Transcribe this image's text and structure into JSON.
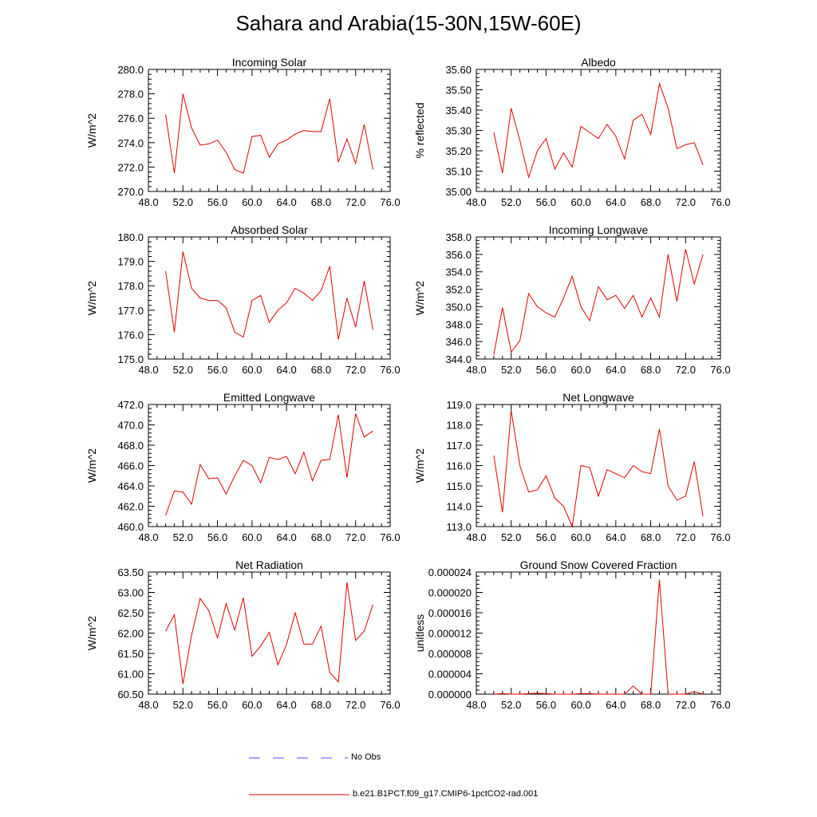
{
  "figure_title": "Sahara and Arabia(15-30N,15W-60E)",
  "legend": {
    "items": [
      {
        "label": "No Obs",
        "color": "#4b4bff",
        "style": "dashed"
      },
      {
        "label": "b.e21.B1PCT.f09_g17.CMIP6-1pctCO2-rad.001",
        "color": "#e00000",
        "style": "solid"
      }
    ]
  },
  "chart_data": [
    {
      "type": "line",
      "title": "Incoming Solar",
      "ylabel": "W/m^2",
      "xlim": [
        48,
        76
      ],
      "ylim": [
        270,
        280
      ],
      "xticks": [
        "48.0",
        "52.0",
        "56.0",
        "60.0",
        "64.0",
        "68.0",
        "72.0",
        "76.0"
      ],
      "yticks": [
        "270.0",
        "272.0",
        "274.0",
        "276.0",
        "278.0",
        "280.0"
      ],
      "series": [
        {
          "color": "#e00000",
          "x": [
            50,
            51,
            52,
            53,
            54,
            55,
            56,
            57,
            58,
            59,
            60,
            61,
            62,
            63,
            64,
            65,
            66,
            67,
            68,
            69,
            70,
            71,
            72,
            73,
            74
          ],
          "y": [
            276.3,
            271.5,
            278.0,
            275.2,
            273.8,
            273.9,
            274.2,
            273.2,
            271.8,
            271.5,
            274.5,
            274.6,
            272.8,
            273.9,
            274.2,
            274.7,
            275.0,
            274.9,
            274.9,
            277.6,
            272.4,
            274.3,
            272.3,
            275.5,
            271.8
          ]
        }
      ]
    },
    {
      "type": "line",
      "title": "Albedo",
      "ylabel": "% reflected",
      "xlim": [
        48,
        76
      ],
      "ylim": [
        35.0,
        35.6
      ],
      "xticks": [
        "48.0",
        "52.0",
        "56.0",
        "60.0",
        "64.0",
        "68.0",
        "72.0",
        "76.0"
      ],
      "yticks": [
        "35.00",
        "35.10",
        "35.20",
        "35.30",
        "35.40",
        "35.50",
        "35.60"
      ],
      "series": [
        {
          "color": "#e00000",
          "x": [
            50,
            51,
            52,
            53,
            54,
            55,
            56,
            57,
            58,
            59,
            60,
            61,
            62,
            63,
            64,
            65,
            66,
            67,
            68,
            69,
            70,
            71,
            72,
            73,
            74
          ],
          "y": [
            35.29,
            35.09,
            35.41,
            35.25,
            35.07,
            35.2,
            35.26,
            35.11,
            35.19,
            35.12,
            35.32,
            35.29,
            35.26,
            35.33,
            35.27,
            35.16,
            35.35,
            35.38,
            35.28,
            35.53,
            35.41,
            35.21,
            35.23,
            35.24,
            35.13
          ]
        }
      ]
    },
    {
      "type": "line",
      "title": "Absorbed Solar",
      "ylabel": "W/m^2",
      "xlim": [
        48,
        76
      ],
      "ylim": [
        175,
        180
      ],
      "xticks": [
        "48.0",
        "52.0",
        "56.0",
        "60.0",
        "64.0",
        "68.0",
        "72.0",
        "76.0"
      ],
      "yticks": [
        "175.0",
        "176.0",
        "177.0",
        "178.0",
        "179.0",
        "180.0"
      ],
      "series": [
        {
          "color": "#e00000",
          "x": [
            50,
            51,
            52,
            53,
            54,
            55,
            56,
            57,
            58,
            59,
            60,
            61,
            62,
            63,
            64,
            65,
            66,
            67,
            68,
            69,
            70,
            71,
            72,
            73,
            74
          ],
          "y": [
            178.6,
            176.1,
            179.4,
            177.9,
            177.5,
            177.4,
            177.4,
            177.1,
            176.1,
            175.9,
            177.4,
            177.6,
            176.5,
            177.0,
            177.3,
            177.9,
            177.7,
            177.4,
            177.8,
            178.8,
            175.8,
            177.5,
            176.3,
            178.2,
            176.2
          ]
        }
      ]
    },
    {
      "type": "line",
      "title": "Incoming Longwave",
      "ylabel": "W/m^2",
      "xlim": [
        48,
        76
      ],
      "ylim": [
        344,
        358
      ],
      "xticks": [
        "48.0",
        "52.0",
        "56.0",
        "60.0",
        "64.0",
        "68.0",
        "72.0",
        "76.0"
      ],
      "yticks": [
        "344.0",
        "346.0",
        "348.0",
        "350.0",
        "352.0",
        "354.0",
        "356.0",
        "358.0"
      ],
      "series": [
        {
          "color": "#e00000",
          "x": [
            50,
            51,
            52,
            53,
            54,
            55,
            56,
            57,
            58,
            59,
            60,
            61,
            62,
            63,
            64,
            65,
            66,
            67,
            68,
            69,
            70,
            71,
            72,
            73,
            74
          ],
          "y": [
            344.5,
            349.9,
            344.8,
            346.1,
            351.5,
            350.0,
            349.3,
            348.8,
            351.0,
            353.5,
            350.0,
            348.4,
            352.3,
            350.8,
            351.3,
            349.8,
            351.3,
            348.8,
            351.0,
            348.8,
            356.0,
            350.6,
            356.6,
            352.6,
            356.0
          ]
        }
      ]
    },
    {
      "type": "line",
      "title": "Emitted Longwave",
      "ylabel": "W/m^2",
      "xlim": [
        48,
        76
      ],
      "ylim": [
        460,
        472
      ],
      "xticks": [
        "48.0",
        "52.0",
        "56.0",
        "60.0",
        "64.0",
        "68.0",
        "72.0",
        "76.0"
      ],
      "yticks": [
        "460.0",
        "462.0",
        "464.0",
        "466.0",
        "468.0",
        "470.0",
        "472.0"
      ],
      "series": [
        {
          "color": "#e00000",
          "x": [
            50,
            51,
            52,
            53,
            54,
            55,
            56,
            57,
            58,
            59,
            60,
            61,
            62,
            63,
            64,
            65,
            66,
            67,
            68,
            69,
            70,
            71,
            72,
            73,
            74
          ],
          "y": [
            461.1,
            463.5,
            463.4,
            462.2,
            466.1,
            464.7,
            464.8,
            463.2,
            465.0,
            466.5,
            466.0,
            464.3,
            466.8,
            466.6,
            466.9,
            465.2,
            467.3,
            464.5,
            466.5,
            466.6,
            471.0,
            464.8,
            471.1,
            468.8,
            469.4
          ]
        }
      ]
    },
    {
      "type": "line",
      "title": "Net Longwave",
      "ylabel": "W/m^2",
      "xlim": [
        48,
        76
      ],
      "ylim": [
        113,
        119
      ],
      "xticks": [
        "48.0",
        "52.0",
        "56.0",
        "60.0",
        "64.0",
        "68.0",
        "72.0",
        "76.0"
      ],
      "yticks": [
        "113.0",
        "114.0",
        "115.0",
        "116.0",
        "117.0",
        "118.0",
        "119.0"
      ],
      "series": [
        {
          "color": "#e00000",
          "x": [
            50,
            51,
            52,
            53,
            54,
            55,
            56,
            57,
            58,
            59,
            60,
            61,
            62,
            63,
            64,
            65,
            66,
            67,
            68,
            69,
            70,
            71,
            72,
            73,
            74
          ],
          "y": [
            116.5,
            113.7,
            118.7,
            116.0,
            114.7,
            114.8,
            115.5,
            114.4,
            114.0,
            113.0,
            116.0,
            115.9,
            114.5,
            115.8,
            115.6,
            115.4,
            116.0,
            115.7,
            115.6,
            117.8,
            115.0,
            114.3,
            114.5,
            116.2,
            113.5
          ]
        }
      ]
    },
    {
      "type": "line",
      "title": "Net Radiation",
      "ylabel": "W/m^2",
      "xlim": [
        48,
        76
      ],
      "ylim": [
        60.5,
        63.5
      ],
      "xticks": [
        "48.0",
        "52.0",
        "56.0",
        "60.0",
        "64.0",
        "68.0",
        "72.0",
        "76.0"
      ],
      "yticks": [
        "60.50",
        "61.00",
        "61.50",
        "62.00",
        "62.50",
        "63.00",
        "63.50"
      ],
      "series": [
        {
          "color": "#e00000",
          "x": [
            50,
            51,
            52,
            53,
            54,
            55,
            56,
            57,
            58,
            59,
            60,
            61,
            62,
            63,
            64,
            65,
            66,
            67,
            68,
            69,
            70,
            71,
            72,
            73,
            74
          ],
          "y": [
            62.05,
            62.45,
            60.75,
            61.95,
            62.85,
            62.55,
            61.88,
            62.73,
            62.07,
            62.87,
            61.43,
            61.68,
            62.02,
            61.22,
            61.72,
            62.5,
            61.73,
            61.73,
            62.17,
            61.03,
            60.8,
            63.25,
            61.82,
            62.05,
            62.7
          ]
        }
      ]
    },
    {
      "type": "line",
      "title": "Ground Snow Covered Fraction",
      "ylabel": "unitless",
      "xlim": [
        48,
        76
      ],
      "ylim": [
        0,
        2.4e-05
      ],
      "xticks": [
        "48.0",
        "52.0",
        "56.0",
        "60.0",
        "64.0",
        "68.0",
        "72.0",
        "76.0"
      ],
      "yticks": [
        "0.000000",
        "0.000004",
        "0.000008",
        "0.000012",
        "0.000016",
        "0.000020",
        "0.000024"
      ],
      "series": [
        {
          "color": "#e00000",
          "x": [
            50,
            51,
            52,
            53,
            54,
            55,
            56,
            57,
            58,
            59,
            60,
            61,
            62,
            63,
            64,
            65,
            66,
            67,
            68,
            69,
            70,
            71,
            72,
            73,
            74
          ],
          "y": [
            0,
            1e-07,
            0,
            0,
            1e-07,
            2e-07,
            1e-07,
            0,
            0,
            0,
            1e-07,
            1e-07,
            0,
            0,
            0,
            0,
            1.6e-06,
            0,
            0,
            2.25e-05,
            0,
            0,
            0,
            5e-07,
            0
          ]
        }
      ]
    }
  ]
}
